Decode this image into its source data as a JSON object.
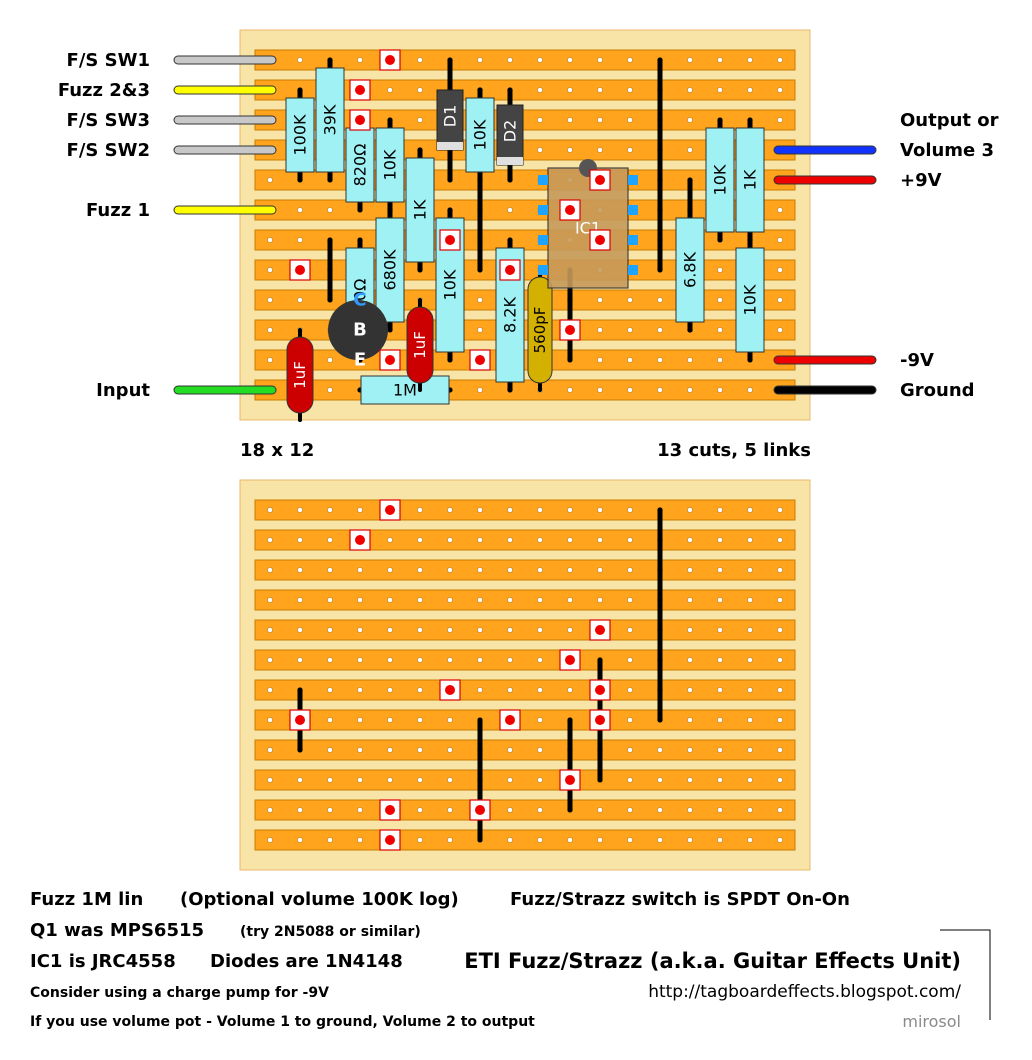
{
  "layout": {
    "top_summary": {
      "size": "18 x 12",
      "cuts_links": "13 cuts, 5 links"
    },
    "wire_labels_left": [
      {
        "label": "F/S SW1",
        "color": "#c8c8c8"
      },
      {
        "label": "Fuzz 2&3",
        "color": "#ffff00"
      },
      {
        "label": "F/S SW3",
        "color": "#c8c8c8"
      },
      {
        "label": "F/S SW2",
        "color": "#c8c8c8"
      },
      {
        "label": "Fuzz 1",
        "color": "#ffff00"
      },
      {
        "label": "Input",
        "color": "#22dd22"
      }
    ],
    "wire_labels_right": [
      {
        "label": "Output or",
        "color": "#1133ff"
      },
      {
        "label": "Volume 3",
        "color": ""
      },
      {
        "label": "+9V",
        "color": "#ee0000"
      },
      {
        "label": "-9V",
        "color": "#ee0000"
      },
      {
        "label": "Ground",
        "color": "#000000"
      }
    ]
  },
  "components": {
    "resistors": [
      "100K",
      "39K",
      "820Ω",
      "10K",
      "1K",
      "10K",
      "270Ω",
      "680K",
      "10K",
      "8.2K",
      "1M",
      "6.8K",
      "10K",
      "1K",
      "10K"
    ],
    "diodes": [
      "D1",
      "D2"
    ],
    "capacitors": [
      "1uF",
      "1uF",
      "560pF"
    ],
    "ic": "IC1",
    "transistor_pins": [
      "C",
      "B",
      "E"
    ]
  },
  "notes": {
    "line1a": "Fuzz 1M lin",
    "line1b": "(Optional volume 100K log)",
    "line1c": "Fuzz/Strazz switch is SPDT On-On",
    "line2a": "Q1 was MPS6515",
    "line2b": "(try 2N5088 or similar)",
    "line3a": "IC1 is JRC4558",
    "line3b": "Diodes are 1N4148",
    "title": "ETI Fuzz/Strazz (a.k.a. Guitar Effects Unit)",
    "line4": "Consider using a charge pump for -9V",
    "url": "http://tagboardeffects.blogspot.com/",
    "line5": "If you use volume pot - Volume 1 to ground, Volume 2 to output",
    "author": "mirosol"
  }
}
